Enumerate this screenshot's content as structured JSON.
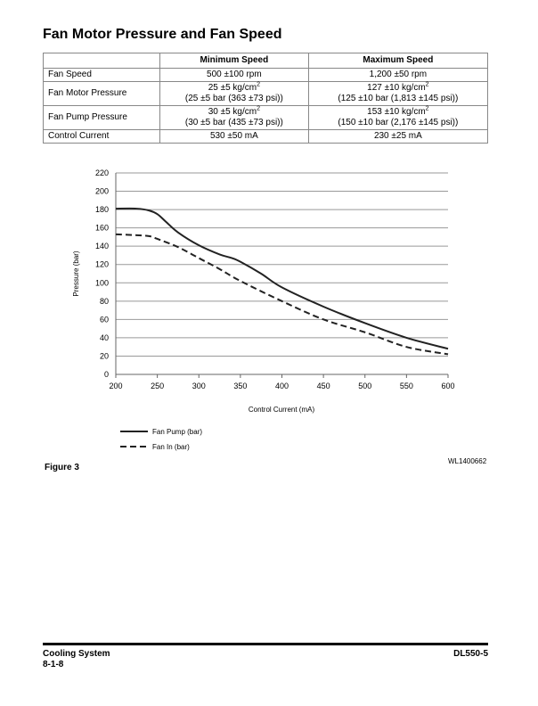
{
  "title": "Fan Motor Pressure and Fan Speed",
  "table": {
    "headers": [
      "",
      "Minimum Speed",
      "Maximum Speed"
    ],
    "rows": [
      {
        "label": "Fan Speed",
        "min": [
          "500 ±100 rpm"
        ],
        "max": [
          "1,200 ±50 rpm"
        ]
      },
      {
        "label": "Fan Motor Pressure",
        "min": [
          "25 ±5 kg/cm²",
          "(25 ±5 bar (363 ±73 psi))"
        ],
        "max": [
          "127 ±10 kg/cm²",
          "(125 ±10 bar (1,813 ±145 psi))"
        ]
      },
      {
        "label": "Fan Pump Pressure",
        "min": [
          "30 ±5 kg/cm²",
          "(30 ±5 bar (435 ±73 psi))"
        ],
        "max": [
          "153 ±10 kg/cm²",
          "(150 ±10 bar (2,176 ±145 psi))"
        ]
      },
      {
        "label": "Control Current",
        "min": [
          "530 ±50 mA"
        ],
        "max": [
          "230 ±25 mA"
        ]
      }
    ]
  },
  "chart_data": {
    "type": "line",
    "xlabel": "Control Current (mA)",
    "ylabel": "Pressure (bar)",
    "xlim": [
      200,
      600
    ],
    "ylim": [
      0,
      220
    ],
    "xticks": [
      200,
      250,
      300,
      350,
      400,
      450,
      500,
      550,
      600
    ],
    "yticks": [
      0,
      20,
      40,
      60,
      80,
      100,
      120,
      140,
      160,
      180,
      200,
      220
    ],
    "grid": "horizontal",
    "legend": "bottom-left",
    "series": [
      {
        "name": "Fan Pump (bar)",
        "style": "solid",
        "x": [
          200,
          225,
          240,
          250,
          260,
          275,
          300,
          325,
          340,
          350,
          375,
          400,
          450,
          500,
          550,
          600
        ],
        "y": [
          181,
          181,
          179,
          175,
          167,
          155,
          141,
          131,
          127,
          123,
          110,
          95,
          74,
          56,
          40,
          28
        ]
      },
      {
        "name": "Fan In (bar)",
        "style": "dashed",
        "x": [
          200,
          225,
          240,
          250,
          275,
          300,
          325,
          350,
          400,
          450,
          500,
          550,
          600
        ],
        "y": [
          153,
          152,
          151,
          148,
          139,
          127,
          115,
          102,
          80,
          60,
          46,
          30,
          22
        ]
      }
    ]
  },
  "figure_label": "Figure 3",
  "figure_code": "WL1400662",
  "footer": {
    "section": "Cooling System",
    "page": "8-1-8",
    "model": "DL550-5"
  }
}
